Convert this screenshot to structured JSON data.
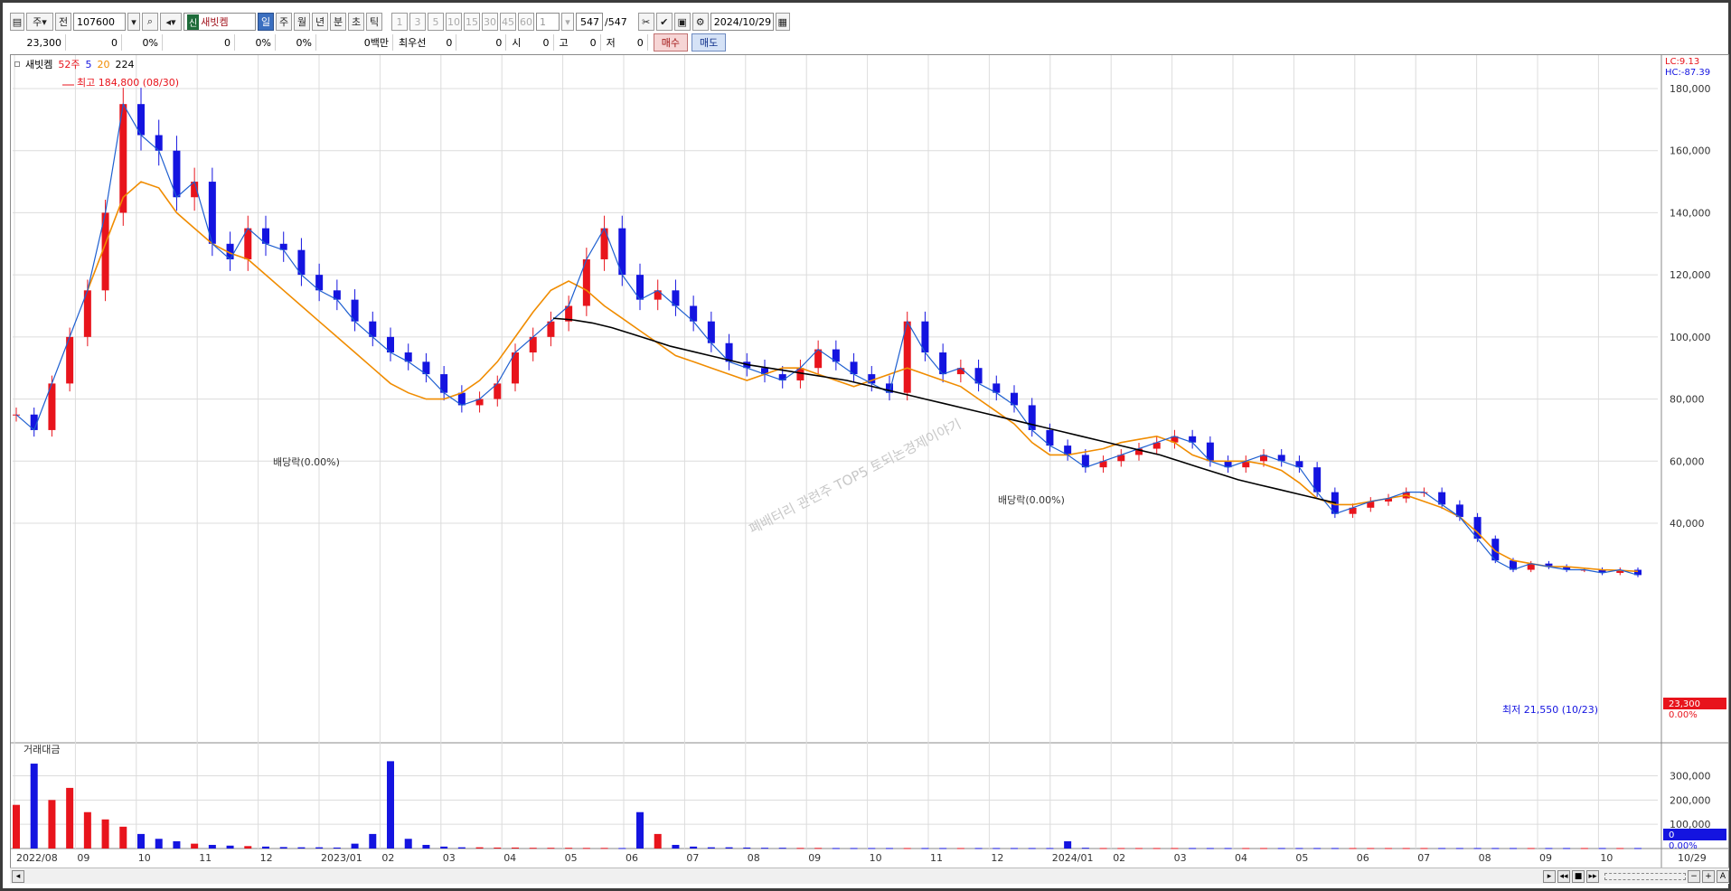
{
  "toolbar": {
    "period_mode": "주",
    "prefix": "전",
    "code": "107600",
    "badge": "신",
    "name": "새빗켐",
    "intervals": [
      "일",
      "주",
      "월",
      "년",
      "분",
      "초",
      "틱"
    ],
    "selected_interval": "일",
    "minute_buttons": [
      "1",
      "3",
      "5",
      "10",
      "15",
      "30",
      "45",
      "60"
    ],
    "count_value": "1",
    "page_current": "547",
    "page_total": "/547",
    "date": "2024/10/29"
  },
  "quote": {
    "price": "23,300",
    "change": "0",
    "change_pct": "0%",
    "v1": "0",
    "v1_pct": "0%",
    "v2_pct": "0%",
    "amount": "0백만",
    "best_label": "최우선",
    "best1": "0",
    "best2": "0",
    "open_label": "시",
    "open": "0",
    "high_label": "고",
    "high": "0",
    "low_label": "저",
    "low": "0",
    "buy_label": "매수",
    "sell_label": "매도"
  },
  "colors": {
    "up": "#e8141c",
    "down": "#1414e0",
    "ma5": "#1e5fd0",
    "ma20": "#f08c00",
    "ma224": "#000000",
    "grid": "#dcdcdc"
  },
  "chart_data": {
    "type": "candlestick",
    "title": "",
    "legend": [
      "새빗켐",
      "52주",
      "5",
      "20",
      "224"
    ],
    "ylim": [
      60000,
      195000
    ],
    "yticks": [
      "180,000",
      "160,000",
      "140,000",
      "120,000",
      "100,000",
      "80,000",
      "60,000",
      "40,000"
    ],
    "yticks_volume": [
      "300,000",
      "200,000",
      "100,000"
    ],
    "x_labels": [
      "2022/08",
      "09",
      "10",
      "11",
      "12",
      "2023/01",
      "02",
      "03",
      "04",
      "05",
      "06",
      "07",
      "08",
      "09",
      "10",
      "11",
      "12",
      "2024/01",
      "02",
      "03",
      "04",
      "05",
      "06",
      "07",
      "08",
      "09",
      "10",
      "10/29"
    ],
    "right_labels": {
      "lc": "LC:9.13",
      "hc": "HC:-87.39",
      "last_price": "23,300",
      "last_pct": "0.00%",
      "vol_last": "0",
      "vol_pct": "0.00%"
    },
    "annotations": {
      "high": "최고 184,800 (08/30)",
      "low": "최저 21,550 (10/23)",
      "ex_div1": "배당락(0.00%)",
      "ex_div2": "배당락(0.00%)",
      "volume_title": "거래대금",
      "watermark": "폐배터리 관련주 TOP5 토되논경제이야기"
    },
    "close_series": [
      75000,
      70000,
      85000,
      100000,
      115000,
      140000,
      175000,
      165000,
      160000,
      145000,
      150000,
      130000,
      125000,
      135000,
      130000,
      128000,
      120000,
      115000,
      112000,
      105000,
      100000,
      95000,
      92000,
      88000,
      82000,
      78000,
      80000,
      85000,
      95000,
      100000,
      105000,
      110000,
      125000,
      135000,
      120000,
      112000,
      115000,
      110000,
      105000,
      98000,
      92000,
      90000,
      88000,
      86000,
      90000,
      96000,
      92000,
      88000,
      85000,
      82000,
      105000,
      95000,
      88000,
      90000,
      85000,
      82000,
      78000,
      70000,
      65000,
      62000,
      58000,
      60000,
      62000,
      64000,
      66000,
      68000,
      66000,
      60000,
      58000,
      60000,
      62000,
      60000,
      58000,
      50000,
      43000,
      45000,
      47000,
      48000,
      50000,
      50000,
      46000,
      42000,
      35000,
      28000,
      25000,
      27000,
      26000,
      25000,
      25000,
      24000,
      25000,
      23300
    ],
    "ma20_series": [
      null,
      null,
      null,
      null,
      115000,
      130000,
      145000,
      150000,
      148000,
      140000,
      135000,
      130000,
      127000,
      125000,
      120000,
      115000,
      110000,
      105000,
      100000,
      95000,
      90000,
      85000,
      82000,
      80000,
      80000,
      82000,
      86000,
      92000,
      100000,
      108000,
      115000,
      118000,
      115000,
      110000,
      106000,
      102000,
      98000,
      94000,
      92000,
      90000,
      88000,
      86000,
      88000,
      90000,
      90000,
      88000,
      86000,
      84000,
      86000,
      88000,
      90000,
      88000,
      86000,
      84000,
      80000,
      76000,
      72000,
      66000,
      62000,
      62000,
      63000,
      64000,
      66000,
      67000,
      68000,
      66000,
      62000,
      60000,
      60000,
      60000,
      59000,
      57000,
      53000,
      48000,
      46000,
      46000,
      47000,
      48000,
      49000,
      47000,
      45000,
      42000,
      37000,
      31000,
      28000,
      27000,
      26000,
      26000,
      25500,
      25000,
      24800,
      24500
    ],
    "ma224_series": [
      106000,
      105500,
      104500,
      103000,
      101000,
      99000,
      97000,
      95500,
      94000,
      92500,
      91000,
      90000,
      89000,
      88000,
      87000,
      86000,
      84500,
      83000,
      81500,
      80000,
      78500,
      77000,
      75500,
      74000,
      72500,
      71000,
      69500,
      68000,
      66500,
      65000,
      63500,
      62000,
      60000,
      58000,
      56000,
      54000,
      52500,
      51000,
      49500,
      48000,
      46500
    ],
    "volume_bars": [
      180000,
      350000,
      200000,
      250000,
      150000,
      120000,
      90000,
      60000,
      40000,
      30000,
      20000,
      15000,
      12000,
      10000,
      8000,
      6000,
      5000,
      5000,
      4000,
      20000,
      60000,
      360000,
      40000,
      15000,
      8000,
      5000,
      5000,
      4000,
      4000,
      3000,
      3000,
      3000,
      2500,
      2500,
      2000,
      150000,
      60000,
      15000,
      8000,
      5000,
      5000,
      4000,
      3000,
      3000,
      2500,
      2500,
      2000,
      2000,
      2000,
      2000,
      2000,
      2000,
      2000,
      2000,
      2000,
      2000,
      2000,
      2000,
      2000,
      30000,
      3000,
      2000,
      2000,
      2000,
      2000,
      2000,
      2000,
      2000,
      2000,
      2000,
      2000,
      2000,
      2000,
      2000,
      2000,
      2000,
      2000,
      2000,
      2000,
      2000,
      2000,
      2000,
      2000,
      2000,
      2000,
      2000,
      2000,
      2000,
      2000,
      2000,
      2000,
      2000
    ]
  }
}
